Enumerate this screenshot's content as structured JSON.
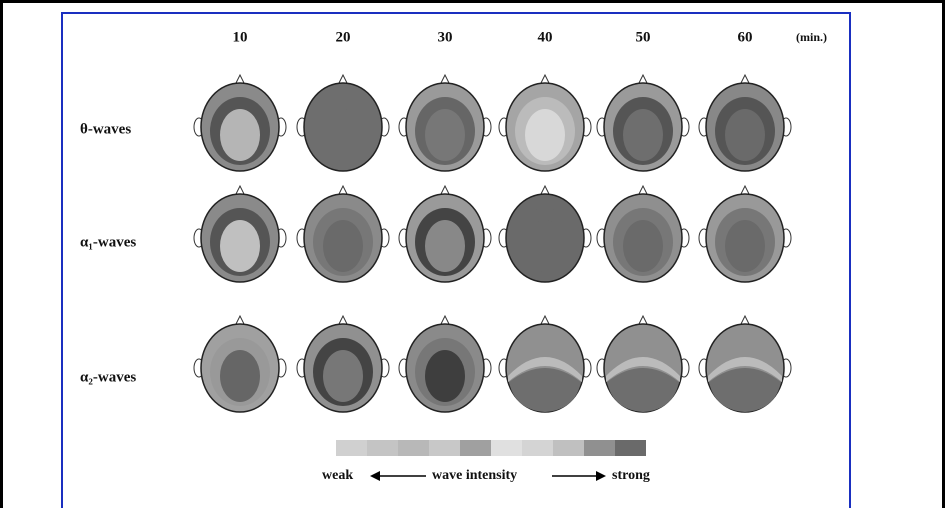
{
  "columns": [
    "10",
    "20",
    "30",
    "40",
    "50",
    "60"
  ],
  "unit": "(min.)",
  "rows": [
    "θ-waves",
    "α₁-waves",
    "α₂-waves"
  ],
  "legend": {
    "left": "weak",
    "middle": "wave intensity",
    "right": "strong"
  }
}
